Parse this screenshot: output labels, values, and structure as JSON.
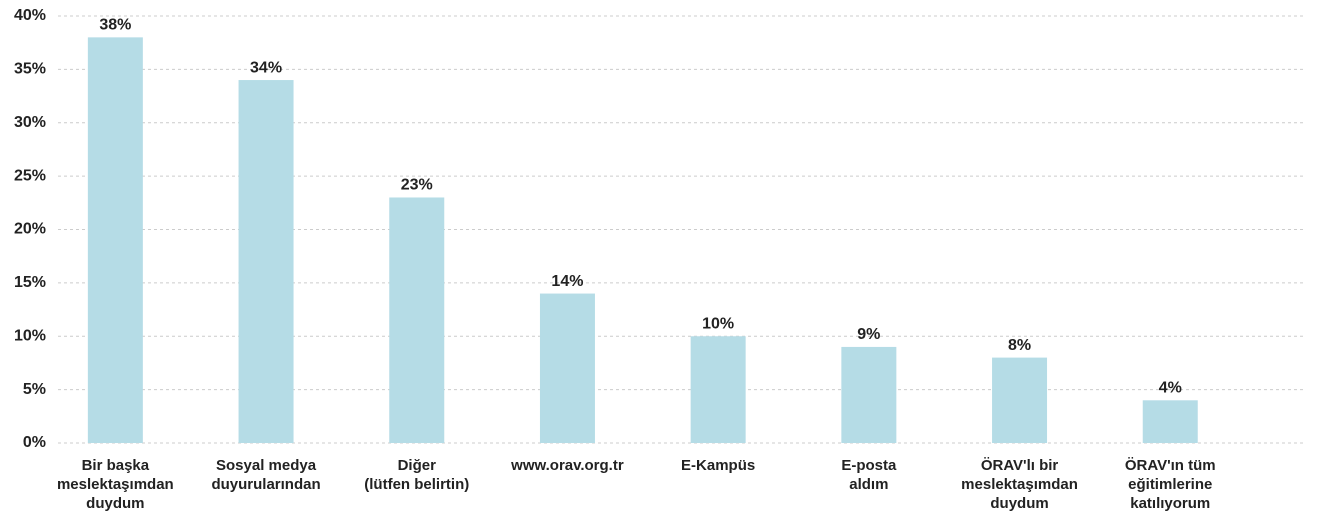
{
  "chart_data": {
    "type": "bar",
    "categories": [
      "Bir başka\nmeslektaşımdan\nduydum",
      "Sosyal medya\nduyurularından",
      "Diğer\n(lütfen belirtin)",
      "www.orav.org.tr",
      "E-Kampüs",
      "E-posta\naldım",
      "ÖRAV'lı bir\nmeslektaşımdan\nduydum",
      "ÖRAV'ın tüm\neğitimlerine\nkatılıyorum"
    ],
    "values": [
      38,
      34,
      23,
      14,
      10,
      9,
      8,
      4
    ],
    "value_labels": [
      "38%",
      "34%",
      "23%",
      "14%",
      "10%",
      "9%",
      "8%",
      "4%"
    ],
    "color": "#b5dce6",
    "ylim": [
      0,
      40
    ],
    "yticks": [
      {
        "value": 0,
        "label": "0%"
      },
      {
        "value": 5,
        "label": "5%"
      },
      {
        "value": 10,
        "label": "10%"
      },
      {
        "value": 15,
        "label": "15%"
      },
      {
        "value": 20,
        "label": "20%"
      },
      {
        "value": 25,
        "label": "25%"
      },
      {
        "value": 30,
        "label": "30%"
      },
      {
        "value": 35,
        "label": "35%"
      },
      {
        "value": 40,
        "label": "40%"
      }
    ],
    "grid": true
  }
}
